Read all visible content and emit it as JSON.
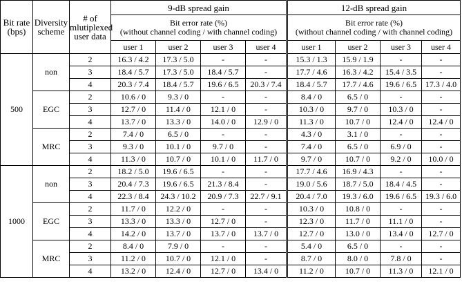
{
  "table": {
    "header": {
      "bit_rate": "Bit rate (bps)",
      "scheme": "Diversity scheme",
      "users": "# of mlutiplexed user data",
      "blocks": [
        {
          "title": "9-dB spread gain",
          "subtitle": "Bit error rate (%)",
          "note": "(without channel coding / with channel coding)",
          "columns": [
            "user 1",
            "user 2",
            "user 3",
            "user 4"
          ]
        },
        {
          "title": "12-dB spread gain",
          "subtitle": "Bit error rate (%)",
          "note": "(without channel coding / with channel coding)",
          "columns": [
            "user 1",
            "user 2",
            "user 3",
            "user 4"
          ]
        }
      ]
    },
    "groups": [
      {
        "bit_rate": "500",
        "schemes": [
          {
            "name": "non",
            "rows": [
              {
                "n": "2",
                "cells": [
                  "16.3 / 4.2",
                  "17.3 / 5.0",
                  "-",
                  "-",
                  "15.3 / 1.3",
                  "15.9 / 1.9",
                  "-",
                  "-"
                ]
              },
              {
                "n": "3",
                "cells": [
                  "18.4 / 5.7",
                  "17.3 / 5.0",
                  "18.4 / 5.7",
                  "-",
                  "17.7 / 4.6",
                  "16.3 / 4.2",
                  "15.4 / 3.5",
                  "-"
                ]
              },
              {
                "n": "4",
                "cells": [
                  "20.3 / 7.4",
                  "18.4 / 5.7",
                  "19.6 / 6.5",
                  "20.3 / 7.4",
                  "18.4 / 5.7",
                  "17.7 / 4.6",
                  "19.6 / 6.5",
                  "17.3 / 4.0"
                ]
              }
            ]
          },
          {
            "name": "EGC",
            "rows": [
              {
                "n": "2",
                "cells": [
                  "10.6 / 0",
                  "9.3 / 0",
                  "-",
                  "-",
                  "8.4 / 0",
                  "6.5 / 0",
                  "-",
                  "-"
                ]
              },
              {
                "n": "3",
                "cells": [
                  "12.7 / 0",
                  "11.4 / 0",
                  "12.1 / 0",
                  "-",
                  "10.3 / 0",
                  "9.7 / 0",
                  "10.3 / 0",
                  "-"
                ]
              },
              {
                "n": "4",
                "cells": [
                  "13.7 / 0",
                  "13.3 / 0",
                  "14.0 / 0",
                  "12.9 / 0",
                  "11.3 / 0",
                  "10.7 / 0",
                  "12.4 / 0",
                  "12.4 / 0"
                ]
              }
            ]
          },
          {
            "name": "MRC",
            "rows": [
              {
                "n": "2",
                "cells": [
                  "7.4 / 0",
                  "6.5 / 0",
                  "-",
                  "-",
                  "4.3 / 0",
                  "3.1 / 0",
                  "-",
                  "-"
                ]
              },
              {
                "n": "3",
                "cells": [
                  "9.3 / 0",
                  "10.1 / 0",
                  "9.7 / 0",
                  "-",
                  "7.4 / 0",
                  "6.5 / 0",
                  "6.9 / 0",
                  "-"
                ]
              },
              {
                "n": "4",
                "cells": [
                  "11.3 / 0",
                  "10.7 / 0",
                  "10.1 / 0",
                  "11.7 / 0",
                  "9.7 / 0",
                  "10.7 / 0",
                  "9.2 / 0",
                  "10.0 / 0"
                ]
              }
            ]
          }
        ]
      },
      {
        "bit_rate": "1000",
        "schemes": [
          {
            "name": "non",
            "rows": [
              {
                "n": "2",
                "cells": [
                  "18.2 / 5.0",
                  "19.6 / 6.5",
                  "-",
                  "-",
                  "17.7 / 4.6",
                  "16.9 / 4.3",
                  "-",
                  "-"
                ]
              },
              {
                "n": "3",
                "cells": [
                  "20.4 / 7.3",
                  "19.6 / 6.5",
                  "21.3 / 8.4",
                  "-",
                  "19.0 / 5.6",
                  "18.7 / 5.0",
                  "18.4 / 4.5",
                  "-"
                ]
              },
              {
                "n": "4",
                "cells": [
                  "22.3 / 8.4",
                  "24.3 / 10.2",
                  "20.9 / 7.3",
                  "22.7 / 9.1",
                  "20.4 / 7.0",
                  "19.3 / 6.0",
                  "19.6 / 6.5",
                  "19.3 / 6.0"
                ]
              }
            ]
          },
          {
            "name": "EGC",
            "rows": [
              {
                "n": "2",
                "cells": [
                  "11.7 / 0",
                  "12.2 / 0",
                  "-",
                  "-",
                  "10.3 / 0",
                  "10.8 / 0",
                  "-",
                  "-"
                ]
              },
              {
                "n": "3",
                "cells": [
                  "13.3 / 0",
                  "13.3 / 0",
                  "12.7 / 0",
                  "-",
                  "12.3 / 0",
                  "11.7 / 0",
                  "11.1 / 0",
                  "-"
                ]
              },
              {
                "n": "4",
                "cells": [
                  "14.2 / 0",
                  "13.7 / 0",
                  "13.7 / 0",
                  "13.7 / 0",
                  "12.7 / 0",
                  "13.0 / 0",
                  "13.4 / 0",
                  "12.7 / 0"
                ]
              }
            ]
          },
          {
            "name": "MRC",
            "rows": [
              {
                "n": "2",
                "cells": [
                  "8.4 / 0",
                  "7.9 / 0",
                  "-",
                  "-",
                  "5.4 / 0",
                  "6.5 / 0",
                  "-",
                  "-"
                ]
              },
              {
                "n": "3",
                "cells": [
                  "11.2 / 0",
                  "10.7 / 0",
                  "12.1 / 0",
                  "-",
                  "8.7 / 0",
                  "8.0 / 0",
                  "7.8 / 0",
                  "-"
                ]
              },
              {
                "n": "4",
                "cells": [
                  "13.2 / 0",
                  "12.4 / 0",
                  "12.7 / 0",
                  "13.4 / 0",
                  "11.2 / 0",
                  "10.7 / 0",
                  "11.3 / 0",
                  "12.1 / 0"
                ]
              }
            ]
          }
        ]
      }
    ]
  }
}
